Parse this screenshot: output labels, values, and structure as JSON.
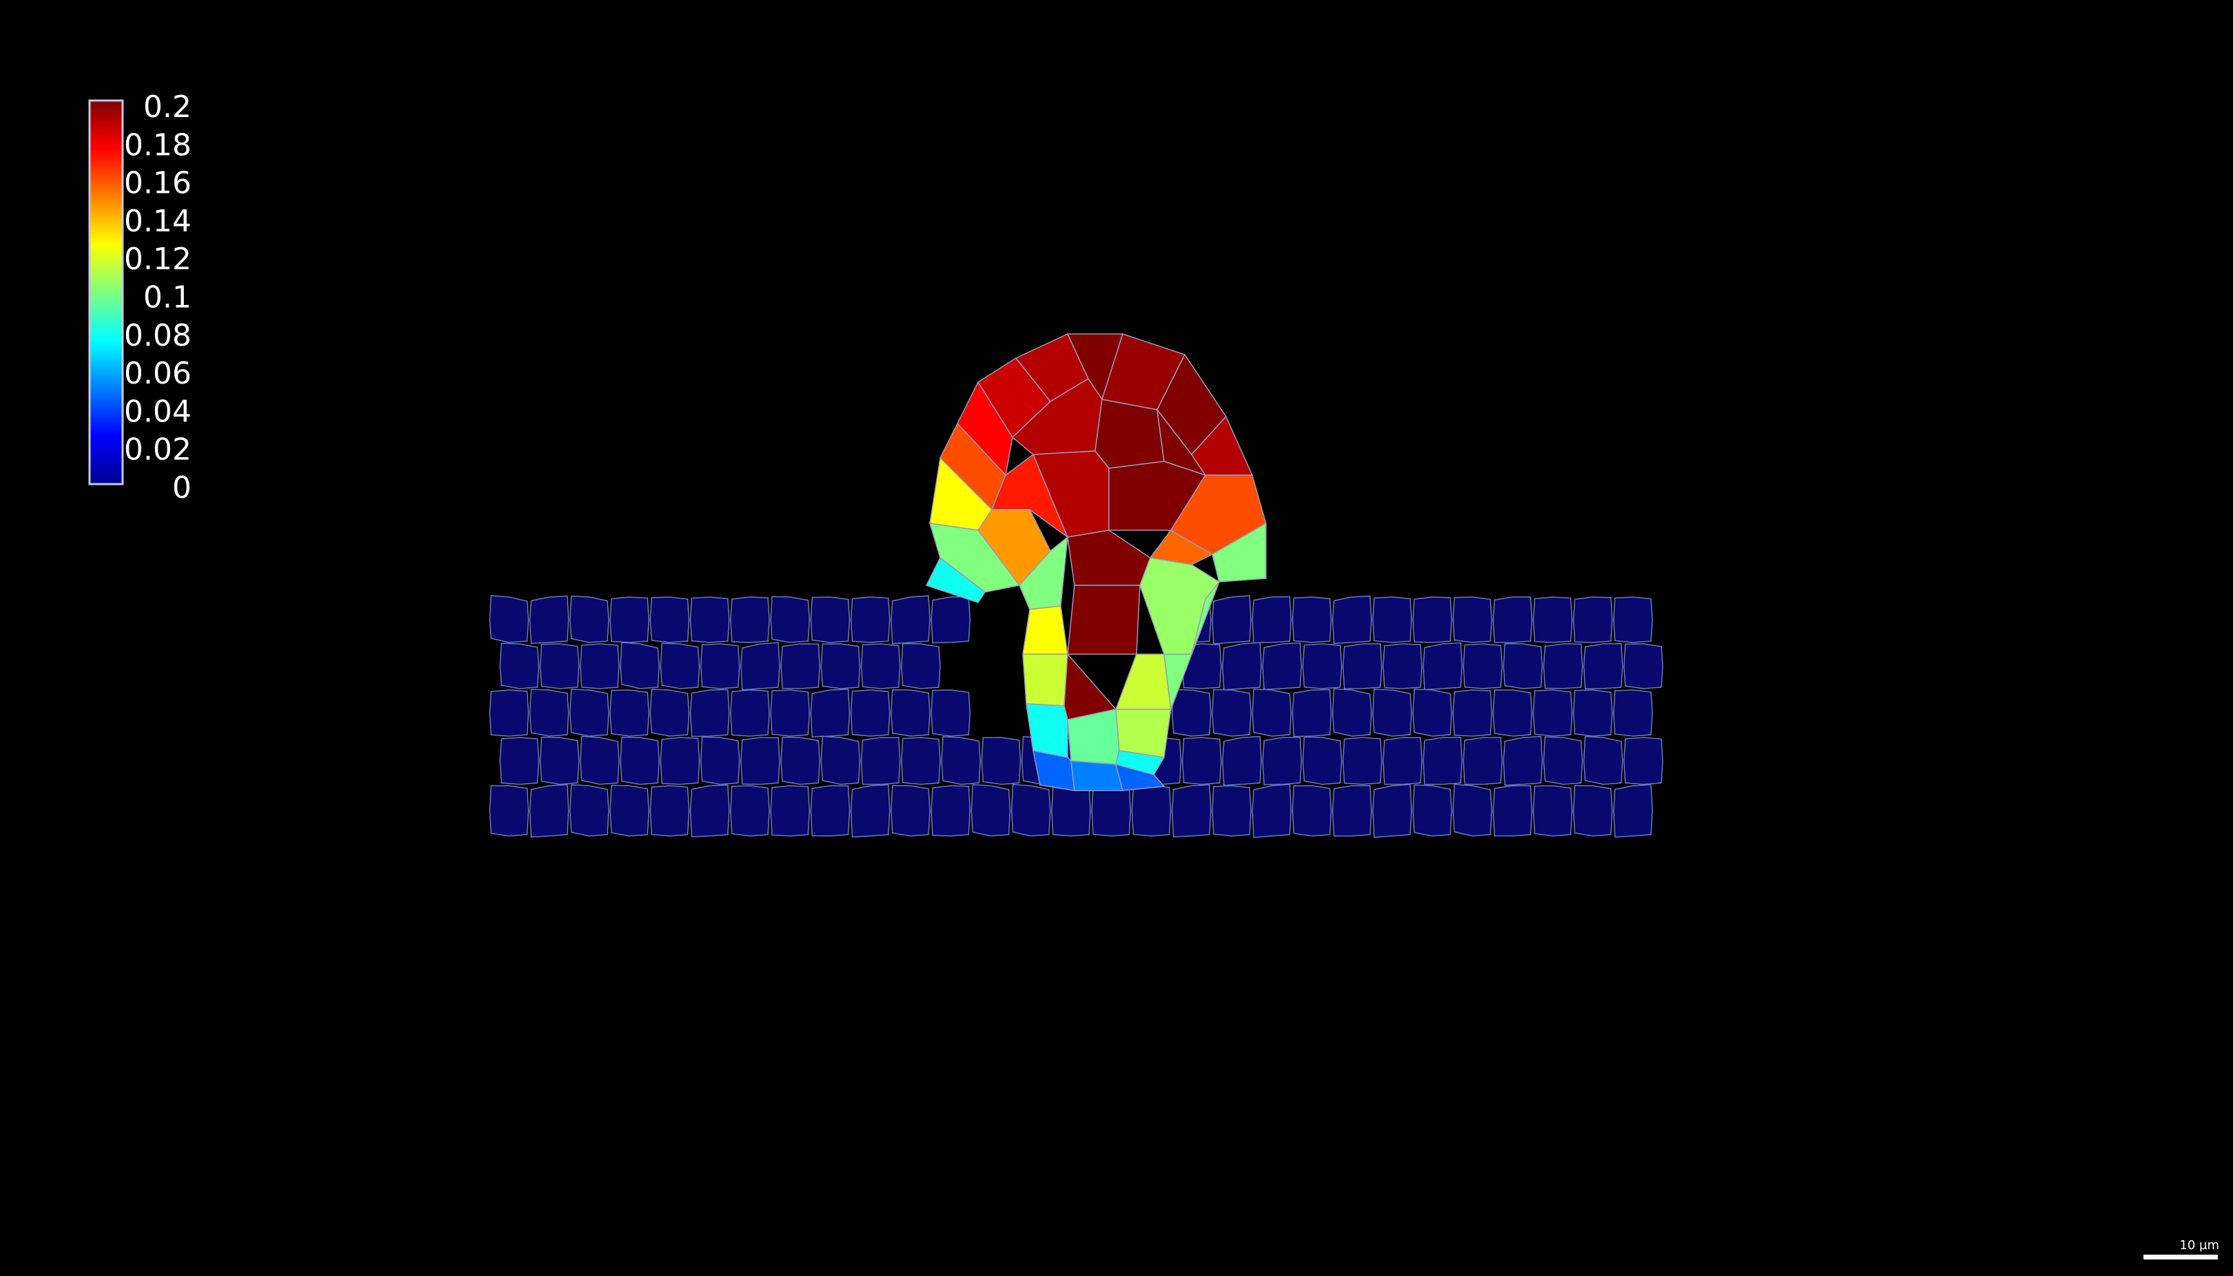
{
  "colorbar": {
    "colormap": "jet",
    "range": [
      0,
      0.2
    ],
    "tick_labels": [
      "0.2",
      "0.18",
      "0.16",
      "0.14",
      "0.12",
      "0.1",
      "0.08",
      "0.06",
      "0.04",
      "0.02",
      "0"
    ],
    "tick_values": [
      0.2,
      0.18,
      0.16,
      0.14,
      0.12,
      0.1,
      0.08,
      0.06,
      0.04,
      0.02,
      0
    ],
    "placement": "top-left",
    "outline_color": "#c8c8e0"
  },
  "scale_bar": {
    "label": "10 µm",
    "placement": "bottom-right",
    "color": "#ffffff"
  },
  "tissue": {
    "background_color": "#000000",
    "cell_edge_color": "#6a78b8",
    "epithelium_color": "#08086e",
    "epithelium_rows": 5,
    "epithelium_cells_per_row": [
      29,
      29,
      29,
      29,
      29
    ],
    "bud_cells": [
      {
        "value": 0.185
      },
      {
        "value": 0.19
      },
      {
        "value": 0.2
      },
      {
        "value": 0.195
      },
      {
        "value": 0.2
      },
      {
        "value": 0.175
      },
      {
        "value": 0.19
      },
      {
        "value": 0.2
      },
      {
        "value": 0.2
      },
      {
        "value": 0.19
      },
      {
        "value": 0.16
      },
      {
        "value": 0.17
      },
      {
        "value": 0.19
      },
      {
        "value": 0.2
      },
      {
        "value": 0.16
      },
      {
        "value": 0.125
      },
      {
        "value": 0.145
      },
      {
        "value": 0.155
      },
      {
        "value": 0.1
      },
      {
        "value": 0.1
      },
      {
        "value": 0.078
      },
      {
        "value": 0.1
      },
      {
        "value": 0.125
      },
      {
        "value": 0.2
      },
      {
        "value": 0.105
      },
      {
        "value": 0.115
      },
      {
        "value": 0.2
      },
      {
        "value": 0.115
      },
      {
        "value": 0.1
      },
      {
        "value": 0.2
      },
      {
        "value": 0.11
      },
      {
        "value": 0.078
      },
      {
        "value": 0.095
      },
      {
        "value": 0.078
      },
      {
        "value": 0.045
      },
      {
        "value": 0.05
      },
      {
        "value": 0.045
      }
    ]
  }
}
